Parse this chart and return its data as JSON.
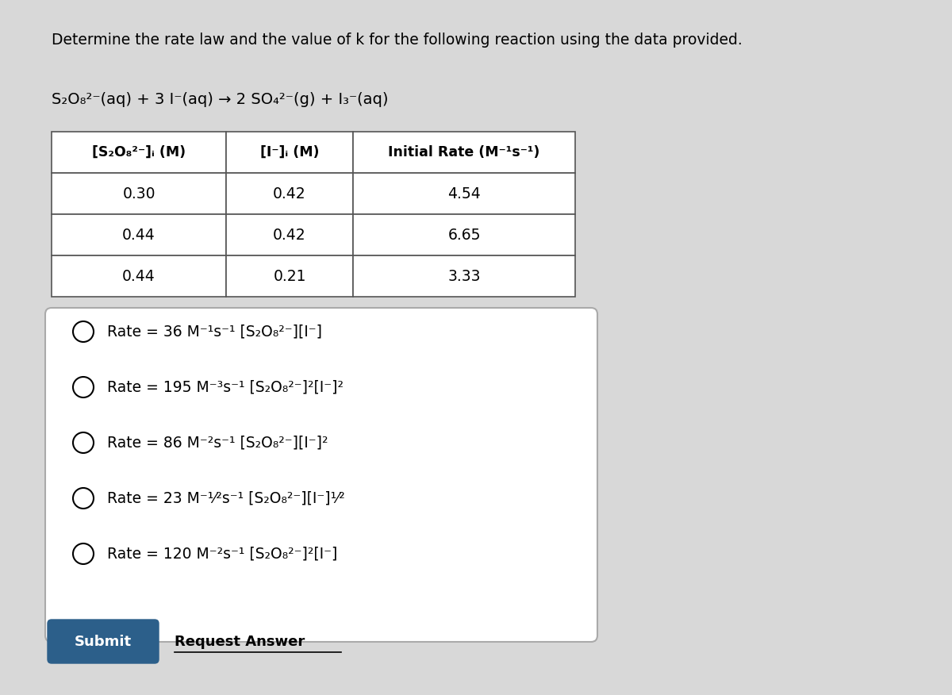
{
  "bg_color": "#d8d8d8",
  "title": "Determine the rate law and the value of k for the following reaction using the data provided.",
  "equation": "S₂O₈²⁻(aq) + 3 I⁻(aq) → 2 SO₄²⁻(g) + I₃⁻(aq)",
  "table_header": [
    "[S₂O₈²⁻]ᵢ (M)",
    "[I⁻]ᵢ (M)",
    "Initial Rate (M⁻¹s⁻¹)"
  ],
  "table_data": [
    [
      "0.30",
      "0.42",
      "4.54"
    ],
    [
      "0.44",
      "0.42",
      "6.65"
    ],
    [
      "0.44",
      "0.21",
      "3.33"
    ]
  ],
  "options": [
    "Rate = 36 M⁻¹s⁻¹ [S₂O₈²⁻][I⁻]",
    "Rate = 195 M⁻³s⁻¹ [S₂O₈²⁻]²[I⁻]²",
    "Rate = 86 M⁻²s⁻¹ [S₂O₈²⁻][I⁻]²",
    "Rate = 23 M⁻¹⁄²s⁻¹ [S₂O₈²⁻][I⁻]¹⁄²",
    "Rate = 120 M⁻²s⁻¹ [S₂O₈²⁻]²[I⁻]"
  ],
  "submit_color": "#2c5f8a",
  "submit_text": "Submit",
  "request_text": "Request Answer"
}
